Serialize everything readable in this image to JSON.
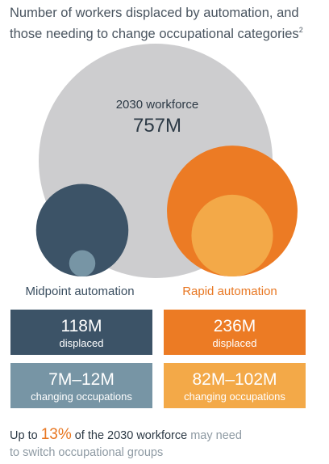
{
  "title": {
    "line1": "Number of workers displaced by automation, and",
    "line2": "those needing to change occupational categories",
    "footnote_mark": "2"
  },
  "chart_data": {
    "type": "bubble",
    "title": "Number of workers displaced by automation, and those needing to change occupational categories",
    "unit": "millions of workers",
    "workforce": {
      "label": "2030 workforce",
      "value_label": "757M",
      "value": 757
    },
    "scenarios": [
      {
        "name": "Midpoint automation",
        "displaced": {
          "label": "displaced",
          "value_label": "118M",
          "value": 118
        },
        "changing": {
          "label": "changing occupations",
          "value_label": "7M–12M",
          "range": [
            7,
            12
          ]
        }
      },
      {
        "name": "Rapid automation",
        "displaced": {
          "label": "displaced",
          "value_label": "236M",
          "value": 236
        },
        "changing": {
          "label": "changing occupations",
          "value_label": "82M–102M",
          "range": [
            82,
            102
          ]
        }
      }
    ],
    "colors": {
      "workforce": "#cdcdcf",
      "midpoint_displaced": "#3c5367",
      "midpoint_changing": "#7795a5",
      "rapid_displaced": "#ec7b24",
      "rapid_changing": "#f3a948"
    }
  },
  "footer": {
    "prefix": "Up to ",
    "percent": "13%",
    "middle": " of the 2030 workforce",
    "muted": " may need",
    "line2": "to switch occupational groups"
  }
}
